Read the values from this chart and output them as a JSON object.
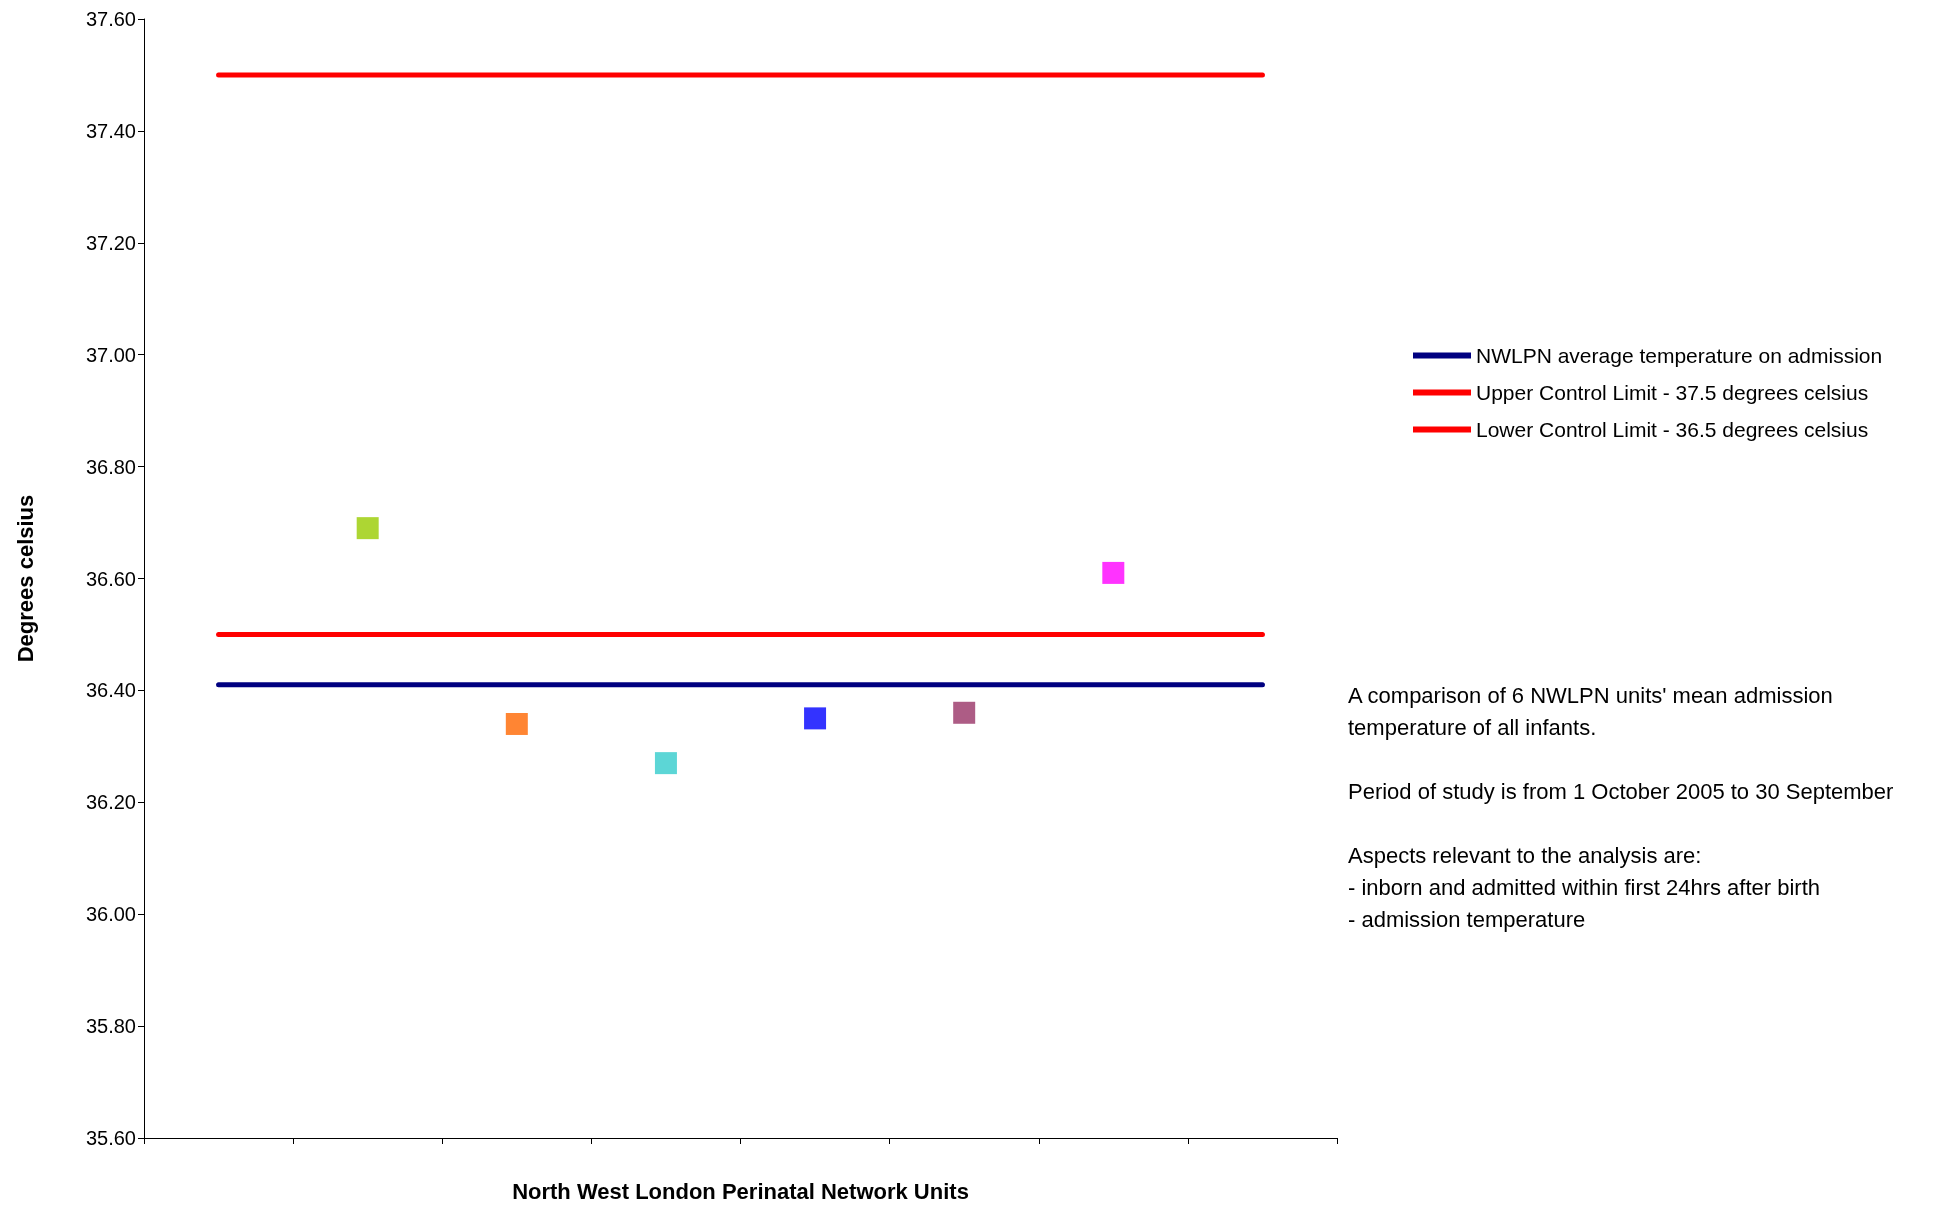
{
  "chart_data": {
    "type": "line",
    "xlabel": "North West London Perinatal Network Units",
    "ylabel": "Degrees celsius",
    "categories": [
      null,
      null,
      null,
      null,
      null,
      null,
      null,
      null
    ],
    "series": [
      {
        "type": "scatter",
        "marker": "square",
        "values": [
          null,
          36.69,
          36.34,
          36.27,
          36.35,
          36.36,
          36.61,
          null
        ],
        "colors": [
          null,
          "#99cc00",
          "#ff6600",
          "#33cccc",
          "#0000ff",
          "#993366",
          "#ff00ff",
          null
        ]
      },
      {
        "name": "NWLPN average temperature on admission",
        "color": "#000080",
        "marker": "none",
        "values": [
          36.41,
          36.41,
          36.41,
          36.41,
          36.41,
          36.41,
          36.41,
          36.41
        ]
      },
      {
        "name": "Upper Control Limit - 37.5 degrees celsius",
        "color": "#ff0000",
        "marker": "none",
        "values": [
          37.5,
          37.5,
          37.5,
          37.5,
          37.5,
          37.5,
          37.5,
          37.5
        ]
      },
      {
        "name": "Lower Control Limit - 36.5 degrees celsius",
        "color": "#ff0000",
        "marker": "none",
        "values": [
          36.5,
          36.5,
          36.5,
          36.5,
          36.5,
          36.5,
          36.5,
          36.5
        ]
      }
    ],
    "ylim": [
      35.6,
      37.6
    ],
    "yticks": [
      {
        "value": 35.6,
        "label": "35.60"
      },
      {
        "value": 35.8,
        "label": "35.80"
      },
      {
        "value": 36.0,
        "label": "36.00"
      },
      {
        "value": 36.2,
        "label": "36.20"
      },
      {
        "value": 36.4,
        "label": "36.40"
      },
      {
        "value": 36.6,
        "label": "36.60"
      },
      {
        "value": 36.8,
        "label": "36.80"
      },
      {
        "value": 37.0,
        "label": "37.00"
      },
      {
        "value": 37.2,
        "label": "37.20"
      },
      {
        "value": 37.4,
        "label": "37.40"
      },
      {
        "value": 37.6,
        "label": "37.60"
      }
    ],
    "grid": false,
    "legend": "right",
    "annotations": [
      "A comparison of 6 NWLPN units' mean admission temperature of all infants.",
      "Period of study is from 1 October 2005 to 30 September",
      "Aspects relevant to the analysis are:\n- inborn and admitted within first 24hrs after birth\n- admission temperature"
    ]
  }
}
